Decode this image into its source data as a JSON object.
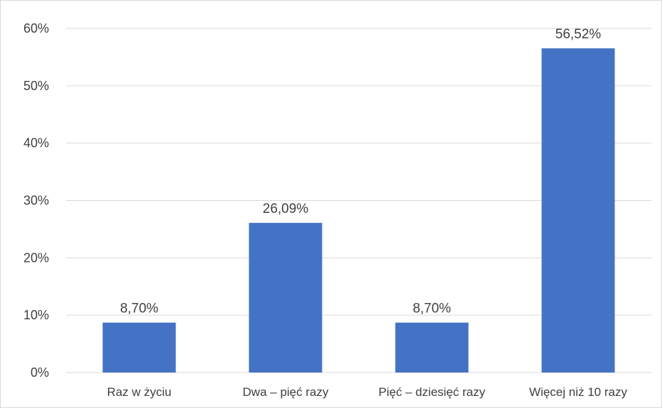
{
  "chart_data": {
    "type": "bar",
    "categories": [
      "Raz w życiu",
      "Dwa – pięć razy",
      "Pięć – dziesięć razy",
      "Więcej niż 10 razy"
    ],
    "values": [
      8.7,
      26.09,
      8.7,
      56.52
    ],
    "data_labels": [
      "8,70%",
      "26,09%",
      "8,70%",
      "56,52%"
    ],
    "y_ticks": [
      "0%",
      "10%",
      "20%",
      "30%",
      "40%",
      "50%",
      "60%"
    ],
    "ylim": [
      0,
      60
    ],
    "y_unit": "percent",
    "grid": true,
    "legend": "none",
    "colors": {
      "bar": "#4472c4",
      "grid": "#d9d9d9",
      "text": "#404040"
    }
  }
}
